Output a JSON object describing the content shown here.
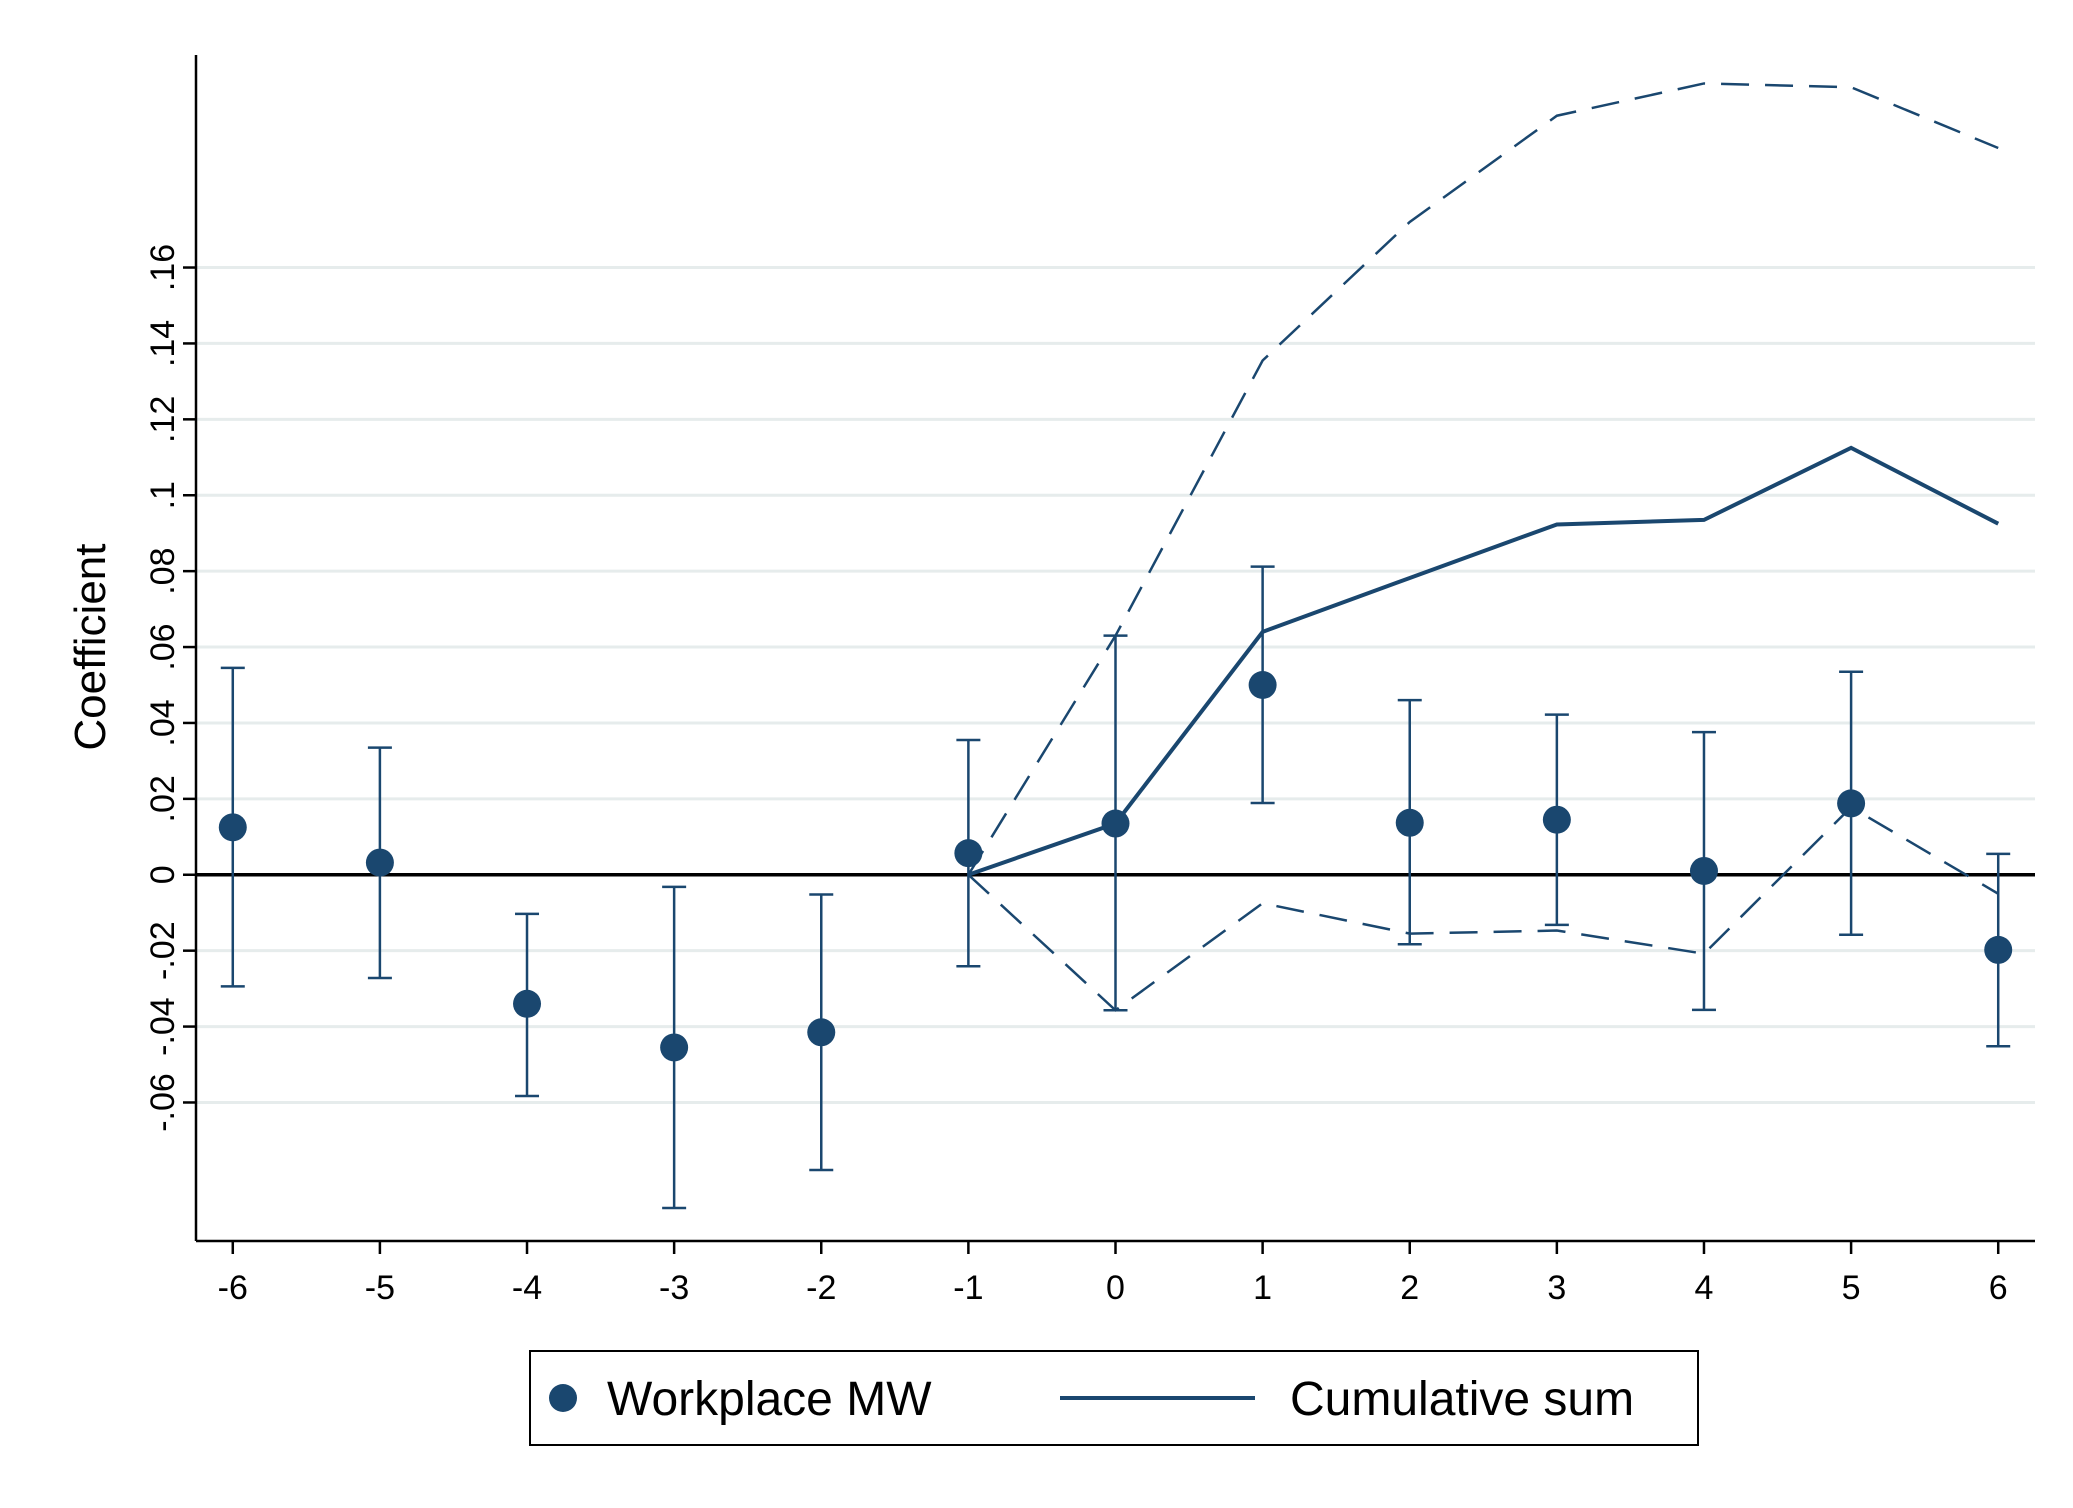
{
  "chart_data": {
    "type": "scatter",
    "title": "",
    "xlabel": "",
    "ylabel": "Coefficient",
    "xlim": [
      -6.25,
      6.25
    ],
    "ylim": [
      -0.0965,
      0.216
    ],
    "x_ticks": [
      -6,
      -5,
      -4,
      -3,
      -2,
      -1,
      0,
      1,
      2,
      3,
      4,
      5,
      6
    ],
    "x_tick_labels": [
      "-6",
      "-5",
      "-4",
      "-3",
      "-2",
      "-1",
      "0",
      "1",
      "2",
      "3",
      "4",
      "5",
      "6"
    ],
    "y_ticks": [
      -0.06,
      -0.04,
      -0.02,
      0,
      0.02,
      0.04,
      0.06,
      0.08,
      0.1,
      0.12,
      0.14,
      0.16
    ],
    "y_tick_labels": [
      "-.06",
      "-.04",
      "-.02",
      "0",
      ".02",
      ".04",
      ".06",
      ".08",
      ".1",
      ".12",
      ".14",
      ".16"
    ],
    "grid": true,
    "zero_line": true,
    "legend_placement": "bottom",
    "colors": {
      "series": "#1a476f",
      "grid": "#e6ecec",
      "zero_line": "#000000"
    },
    "series": [
      {
        "name": "Workplace MW",
        "kind": "point-with-ci",
        "x": [
          -6,
          -5,
          -4,
          -3,
          -2,
          -1,
          0,
          1,
          2,
          3,
          4,
          5,
          6
        ],
        "y": [
          0.0125,
          0.0032,
          -0.034,
          -0.0455,
          -0.0415,
          0.0057,
          0.0135,
          0.05,
          0.0137,
          0.0145,
          0.001,
          0.0188,
          -0.0198
        ],
        "ci_low": [
          -0.0294,
          -0.0272,
          -0.0583,
          -0.0878,
          -0.0778,
          -0.0241,
          -0.0357,
          0.0189,
          -0.0183,
          -0.0132,
          -0.0356,
          -0.0158,
          -0.0452
        ],
        "ci_high": [
          0.0545,
          0.0335,
          -0.0103,
          -0.0032,
          -0.0052,
          0.0355,
          0.063,
          0.0812,
          0.046,
          0.0422,
          0.0376,
          0.0535,
          0.0055
        ]
      },
      {
        "name": "Cumulative sum",
        "kind": "line",
        "x": [
          -1,
          0,
          1,
          2,
          3,
          4,
          5,
          6
        ],
        "y": [
          0,
          0.0135,
          0.064,
          0.0782,
          0.0923,
          0.0935,
          0.1125,
          0.0925
        ],
        "ci_low": [
          0,
          -0.0357,
          -0.0075,
          -0.0155,
          -0.0147,
          -0.0208,
          0.0178,
          -0.005
        ],
        "ci_high": [
          0,
          0.063,
          0.1355,
          0.172,
          0.2,
          0.2085,
          0.2075,
          0.1915
        ]
      }
    ]
  }
}
